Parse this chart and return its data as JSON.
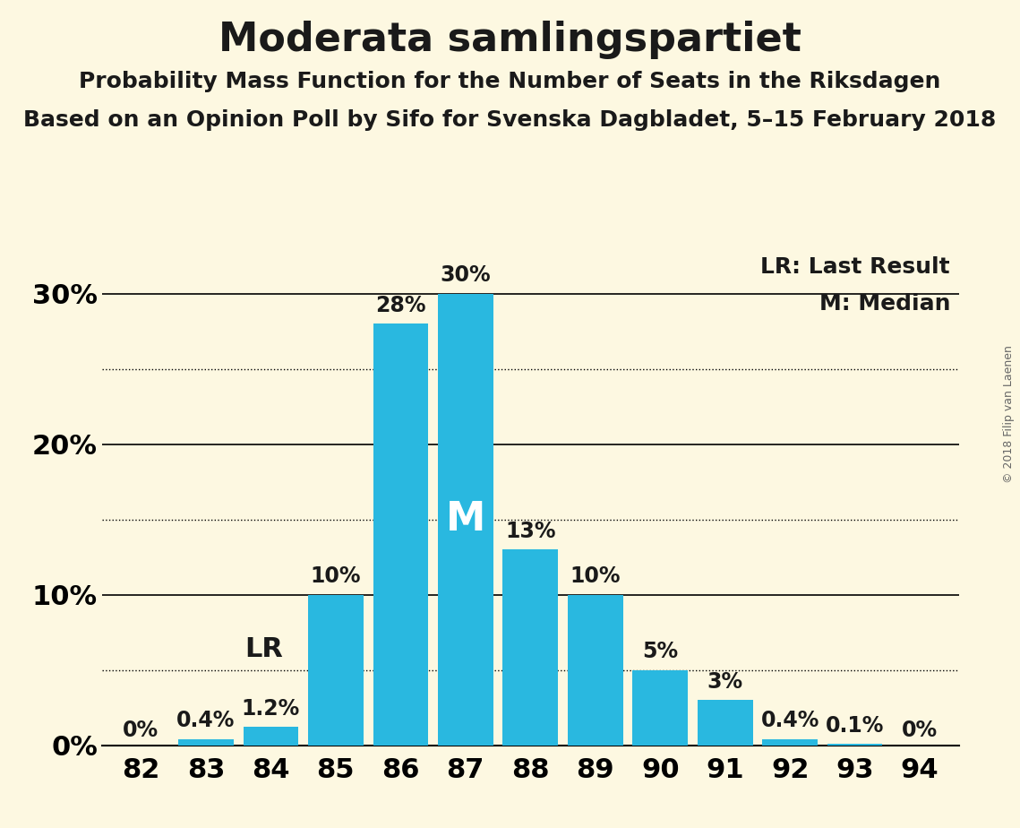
{
  "title": "Moderata samlingspartiet",
  "subtitle1": "Probability Mass Function for the Number of Seats in the Riksdagen",
  "subtitle2": "Based on an Opinion Poll by Sifo for Svenska Dagbladet, 5–15 February 2018",
  "copyright": "© 2018 Filip van Laenen",
  "seats": [
    82,
    83,
    84,
    85,
    86,
    87,
    88,
    89,
    90,
    91,
    92,
    93,
    94
  ],
  "probabilities": [
    0.0,
    0.4,
    1.2,
    10.0,
    28.0,
    30.0,
    13.0,
    10.0,
    5.0,
    3.0,
    0.4,
    0.1,
    0.0
  ],
  "labels": [
    "0%",
    "0.4%",
    "1.2%",
    "10%",
    "28%",
    "30%",
    "13%",
    "10%",
    "5%",
    "3%",
    "0.4%",
    "0.1%",
    "0%"
  ],
  "bar_color": "#29b8e0",
  "background_color": "#fdf8e1",
  "text_color": "#1a1a1a",
  "lr_seat": 84,
  "median_seat": 87,
  "legend_lr": "LR: Last Result",
  "legend_m": "M: Median",
  "yticks": [
    0,
    10,
    20,
    30
  ],
  "ytick_labels": [
    "0%",
    "10%",
    "20%",
    "30%"
  ],
  "dotted_lines": [
    5,
    15,
    25
  ],
  "ylim": [
    0,
    33
  ],
  "title_fontsize": 32,
  "subtitle_fontsize": 18,
  "axis_fontsize": 22,
  "bar_label_fontsize": 17,
  "legend_fontsize": 18,
  "median_label_fontsize": 32,
  "lr_label_fontsize": 22
}
